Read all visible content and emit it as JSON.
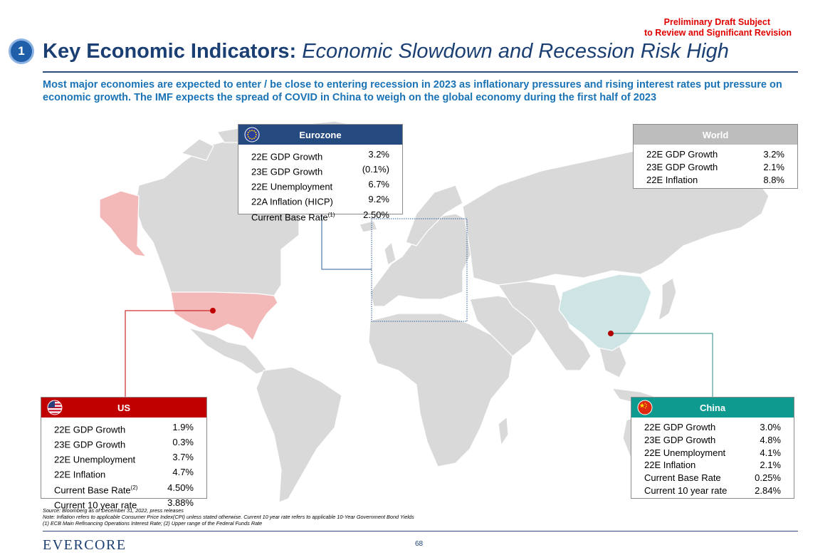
{
  "draft_notice": {
    "line1": "Preliminary Draft Subject",
    "line2": "to Review and Significant Revision"
  },
  "section_number": "1",
  "title": {
    "bold": "Key Economic Indicators:",
    "italic": "Economic Slowdown and Recession Risk High"
  },
  "subtitle": "Most major economies are expected to enter / be close to entering recession in 2023 as inflationary pressures and rising interest rates put pressure on economic growth. The IMF expects the spread of COVID in China to weigh on the global economy during the first half of 2023",
  "colors": {
    "us": "#c00000",
    "eurozone": "#254a80",
    "china": "#0f9a90",
    "world": "#bdbdbd",
    "title": "#1b3f73",
    "subtitle": "#1a73b5",
    "draft": "#e00000"
  },
  "eurozone": {
    "title": "Eurozone",
    "rows": [
      {
        "label": "22E GDP Growth",
        "note": "",
        "value": "3.2%"
      },
      {
        "label": "23E GDP Growth",
        "note": "",
        "value": "(0.1%)"
      },
      {
        "label": "22E Unemployment",
        "note": "",
        "value": "6.7%"
      },
      {
        "label": "22A Inflation (HICP)",
        "note": "",
        "value": "9.2%"
      },
      {
        "label": "Current Base Rate",
        "note": "(1)",
        "value": "2.50%"
      }
    ]
  },
  "world": {
    "title": "World",
    "rows": [
      {
        "label": "22E GDP Growth",
        "note": "",
        "value": "3.2%"
      },
      {
        "label": "23E GDP Growth",
        "note": "",
        "value": "2.1%"
      },
      {
        "label": "22E Inflation",
        "note": "",
        "value": "8.8%"
      }
    ]
  },
  "us": {
    "title": "US",
    "rows": [
      {
        "label": "22E GDP Growth",
        "note": "",
        "value": "1.9%"
      },
      {
        "label": "23E GDP Growth",
        "note": "",
        "value": "0.3%"
      },
      {
        "label": "22E Unemployment",
        "note": "",
        "value": "3.7%"
      },
      {
        "label": "22E Inflation",
        "note": "",
        "value": "4.7%"
      },
      {
        "label": "Current Base Rate",
        "note": "(2)",
        "value": "4.50%"
      },
      {
        "label": "Current 10 year rate",
        "note": "",
        "value": "3.88%"
      }
    ]
  },
  "china": {
    "title": "China",
    "rows": [
      {
        "label": "22E GDP Growth",
        "note": "",
        "value": "3.0%"
      },
      {
        "label": "23E GDP Growth",
        "note": "",
        "value": "4.8%"
      },
      {
        "label": "22E Unemployment",
        "note": "",
        "value": "4.1%"
      },
      {
        "label": "22E Inflation",
        "note": "",
        "value": "2.1%"
      },
      {
        "label": "Current Base Rate",
        "note": "",
        "value": "0.25%"
      },
      {
        "label": "Current 10 year rate",
        "note": "",
        "value": "2.84%"
      }
    ]
  },
  "footnotes": {
    "source": "Source: Bloomberg as of December 31, 2022, press releases",
    "note": "Note: Inflation refers to applicable Consumer Price Index(CPI) unless stated otherwise. Current 10 year rate refers to applicable 10-Year Government Bond Yields",
    "defs": "(1) ECB Main Refinancing Operations Interest Rate; (2) Upper range of the Federal Funds Rate"
  },
  "logo": "EVERCORE",
  "page_number": "68"
}
